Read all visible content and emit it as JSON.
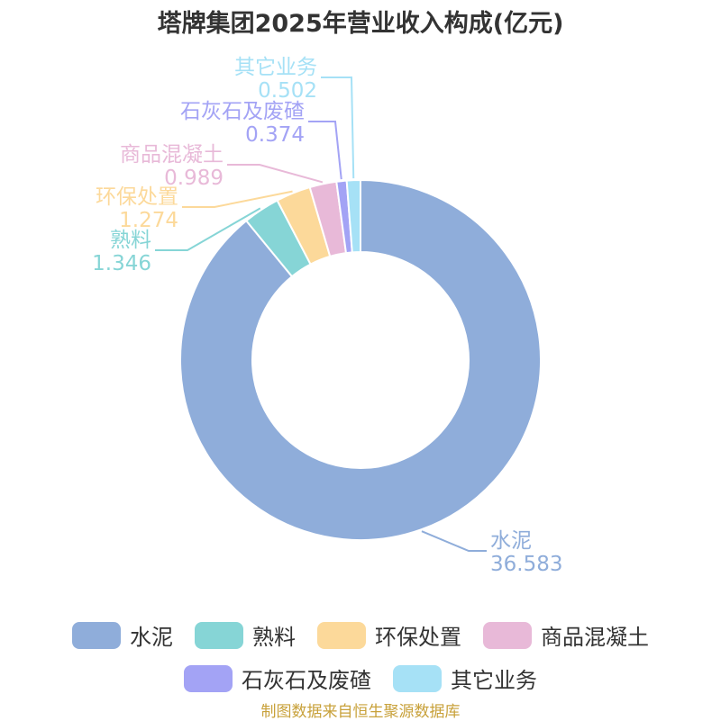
{
  "chart_data": {
    "type": "pie",
    "title": "塔牌集团2025年营业收入构成(亿元)",
    "categories": [
      "水泥",
      "熟料",
      "环保处置",
      "商品混凝土",
      "石灰石及废碴",
      "其它业务"
    ],
    "values": [
      36.583,
      1.346,
      1.274,
      0.989,
      0.374,
      0.502
    ],
    "value_labels": [
      "36.583",
      "1.346",
      "1.274",
      "0.989",
      "0.374",
      "0.502"
    ],
    "colors": [
      "#8fadda",
      "#86d5d6",
      "#fcd99a",
      "#e8b9d8",
      "#a3a3f5",
      "#a6e1f6"
    ],
    "legend_position": "bottom"
  },
  "source_note": "制图数据来自恒生聚源数据库"
}
